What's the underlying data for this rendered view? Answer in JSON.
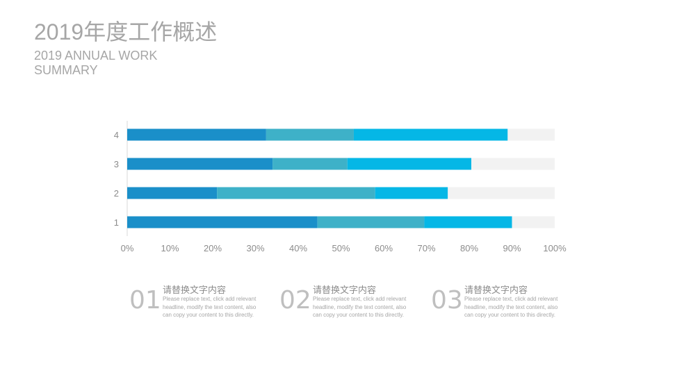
{
  "header": {
    "title_zh": "2019年度工作概述",
    "title_en": "2019 ANNUAL WORK SUMMARY"
  },
  "chart_data": {
    "type": "bar",
    "orientation": "horizontal",
    "stacked": true,
    "categories": [
      "1",
      "2",
      "3",
      "4"
    ],
    "series": [
      {
        "color": "#1a8fc9",
        "values": [
          44.5,
          21,
          34,
          32.5
        ]
      },
      {
        "color": "#3eb1c8",
        "values": [
          25,
          37,
          17.5,
          20.5
        ]
      },
      {
        "color": "#05b7e6",
        "values": [
          20.5,
          17,
          29,
          36
        ]
      },
      {
        "color": "#f2f2f2",
        "values": [
          10,
          25,
          19.5,
          11
        ]
      }
    ],
    "x_ticks": [
      "0%",
      "10%",
      "20%",
      "30%",
      "40%",
      "50%",
      "60%",
      "70%",
      "80%",
      "90%",
      "100%"
    ],
    "xlim": [
      0,
      100
    ],
    "grid": false
  },
  "features": [
    {
      "number": "01",
      "heading": "请替换文字内容",
      "body": "Please replace text, click add relevant headline, modify the text content, also can copy your content to this directly."
    },
    {
      "number": "02",
      "heading": "请替换文字内容",
      "body": "Please replace text, click add relevant headline, modify the text content, also can copy your content to this directly."
    },
    {
      "number": "03",
      "heading": "请替换文字内容",
      "body": "Please replace text, click add relevant headline, modify the text content, also can copy your content to this directly."
    }
  ]
}
